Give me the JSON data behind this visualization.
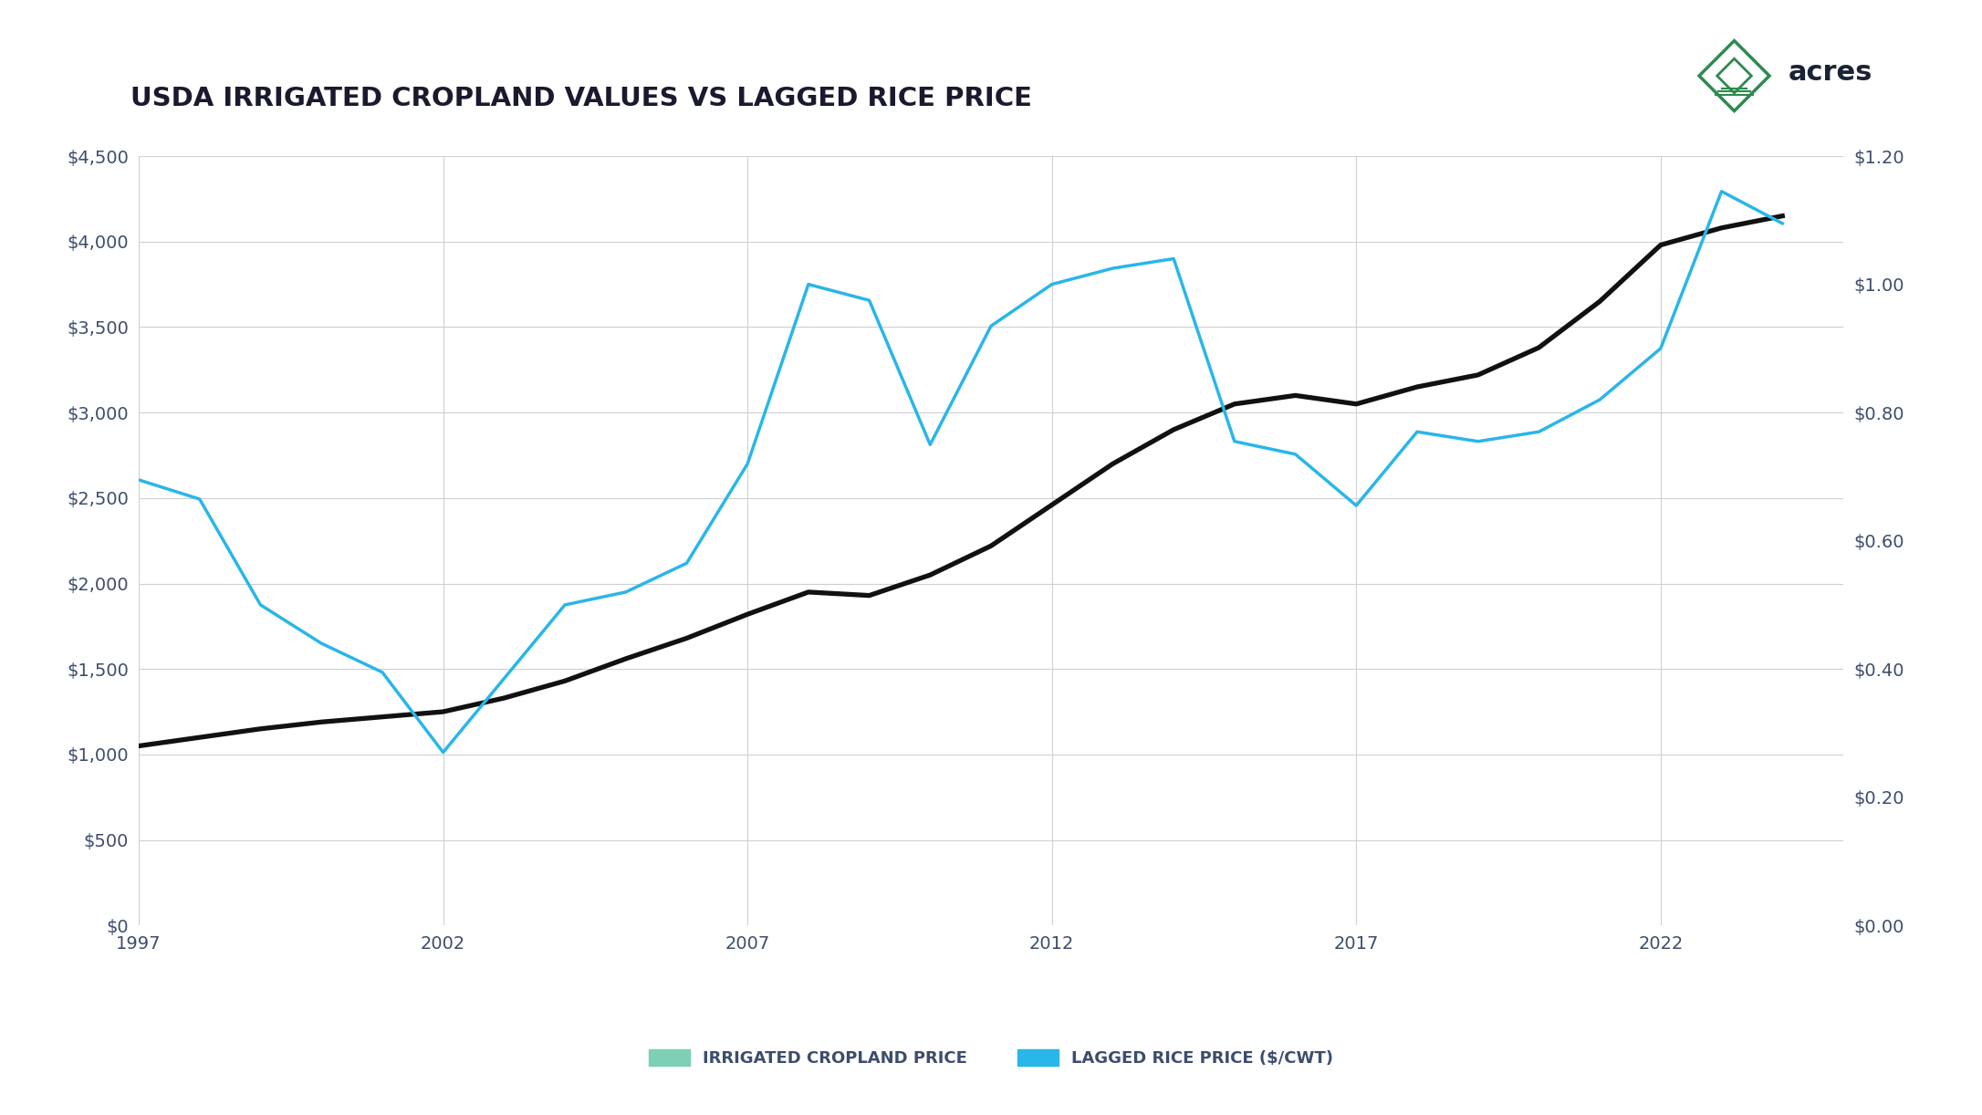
{
  "title": "USDA IRRIGATED CROPLAND VALUES VS LAGGED RICE PRICE",
  "title_fontsize": 21,
  "title_color": "#1a1a2e",
  "background_color": "#ffffff",
  "cropland_years": [
    1997,
    1998,
    1999,
    2000,
    2001,
    2002,
    2003,
    2004,
    2005,
    2006,
    2007,
    2008,
    2009,
    2010,
    2011,
    2012,
    2013,
    2014,
    2015,
    2016,
    2017,
    2018,
    2019,
    2020,
    2021,
    2022,
    2023,
    2024
  ],
  "cropland_values": [
    1050,
    1100,
    1150,
    1190,
    1220,
    1250,
    1330,
    1430,
    1560,
    1680,
    1820,
    1950,
    1930,
    2050,
    2220,
    2460,
    2700,
    2900,
    3050,
    3100,
    3050,
    3150,
    3220,
    3380,
    3650,
    3980,
    4080,
    4150
  ],
  "rice_years": [
    1997,
    1998,
    1999,
    2000,
    2001,
    2002,
    2003,
    2004,
    2005,
    2006,
    2007,
    2008,
    2009,
    2010,
    2011,
    2012,
    2013,
    2014,
    2015,
    2016,
    2017,
    2018,
    2019,
    2020,
    2021,
    2022,
    2023,
    2024
  ],
  "rice_values": [
    0.695,
    0.665,
    0.5,
    0.44,
    0.395,
    0.27,
    0.385,
    0.5,
    0.52,
    0.565,
    0.72,
    1.0,
    0.975,
    0.75,
    0.935,
    1.0,
    1.025,
    1.04,
    0.755,
    0.735,
    0.655,
    0.77,
    0.755,
    0.77,
    0.82,
    0.9,
    1.145,
    1.095
  ],
  "cropland_color": "#111111",
  "rice_color": "#29b6e8",
  "legend_cropland_color": "#7dcfb6",
  "legend_rice_color": "#29b6e8",
  "ylim_left": [
    0,
    4500
  ],
  "ylim_right": [
    0.0,
    1.2
  ],
  "yticks_left": [
    0,
    500,
    1000,
    1500,
    2000,
    2500,
    3000,
    3500,
    4000,
    4500
  ],
  "yticks_right": [
    0.0,
    0.2,
    0.4,
    0.6,
    0.8,
    1.0,
    1.2
  ],
  "xticks": [
    1997,
    2002,
    2007,
    2012,
    2017,
    2022
  ],
  "grid_color": "#d0d0d0",
  "tick_color": "#3d4d6e",
  "legend_label_cropland": "IRRIGATED CROPLAND PRICE",
  "legend_label_rice": "LAGGED RICE PRICE ($/CWT)",
  "legend_fontsize": 13,
  "cropland_linewidth": 3.8,
  "rice_linewidth": 2.5,
  "acres_text_color": "#1a2336",
  "acres_icon_color": "#2d8a4e"
}
